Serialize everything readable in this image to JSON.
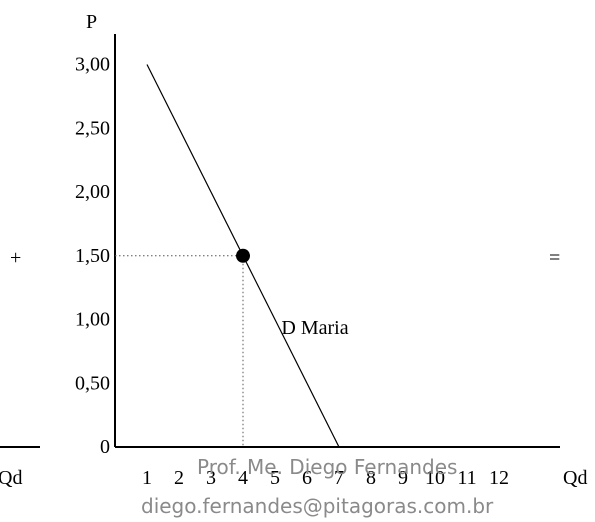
{
  "chart_data": {
    "type": "line",
    "ylabel": "P",
    "xlabel": "Qd",
    "left_axis_label": "Qd",
    "x_ticks": [
      "1",
      "2",
      "3",
      "4",
      "5",
      "6",
      "7",
      "8",
      "9",
      "10",
      "11",
      "12"
    ],
    "y_ticks": [
      "0",
      "0,50",
      "1,00",
      "1,50",
      "2,00",
      "2,50",
      "3,00"
    ],
    "y_tick_values": [
      0,
      0.5,
      1.0,
      1.5,
      2.0,
      2.5,
      3.0
    ],
    "xlim": [
      0,
      13
    ],
    "ylim": [
      0,
      3.3
    ],
    "series": [
      {
        "name": "D Maria",
        "x": [
          1,
          7
        ],
        "y": [
          3.0,
          0
        ]
      }
    ],
    "highlight_point": {
      "x": 4,
      "y": 1.5
    },
    "operators": {
      "left": "+",
      "right": "="
    }
  },
  "watermark": {
    "line1": "Prof. Me. Diego Fernandes",
    "line2": "diego.fernandes@pitagoras.com.br"
  }
}
